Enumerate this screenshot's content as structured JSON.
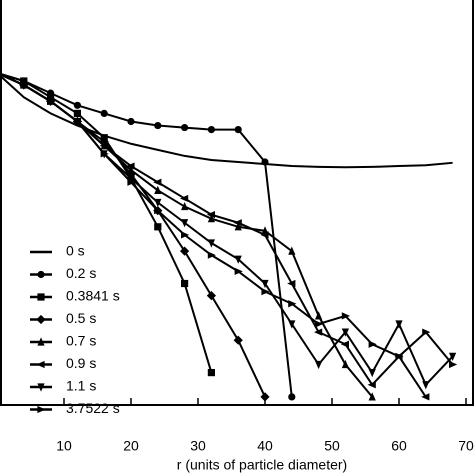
{
  "chart_data": {
    "type": "line",
    "xlabel": "r (units of particle diameter)",
    "x": [
      0,
      4,
      8,
      12,
      16,
      20,
      24,
      28,
      32,
      36,
      40,
      44,
      48,
      52,
      56,
      60,
      64,
      68
    ],
    "xlim": [
      0,
      71
    ],
    "xticks": [
      10,
      20,
      30,
      40,
      50,
      60,
      70
    ],
    "ylim": [
      0,
      1
    ],
    "legend": "lower-left",
    "series": [
      {
        "name": "0 s",
        "color": "#000000",
        "marker": "none",
        "values": [
          0.82,
          0.76,
          0.72,
          0.69,
          0.665,
          0.645,
          0.63,
          0.615,
          0.605,
          0.6,
          0.595,
          0.59,
          0.588,
          0.587,
          0.588,
          0.59,
          0.592,
          0.598
        ]
      },
      {
        "name": "0.2 s",
        "color": "#000000",
        "marker": "circle",
        "values": [
          0.82,
          0.8,
          0.77,
          0.74,
          0.72,
          0.7,
          0.69,
          0.685,
          0.68,
          0.68,
          0.6,
          0.02,
          null,
          null,
          null,
          null,
          null,
          null
        ]
      },
      {
        "name": "0.3841 s",
        "color": "#000000",
        "marker": "square",
        "values": [
          0.82,
          0.8,
          0.76,
          0.72,
          0.66,
          0.56,
          0.44,
          0.3,
          0.08,
          null,
          null,
          null,
          null,
          null,
          null,
          null,
          null,
          null
        ]
      },
      {
        "name": "0.5 s",
        "color": "#000000",
        "marker": "diamond",
        "values": [
          0.82,
          0.79,
          0.75,
          0.7,
          0.65,
          0.57,
          0.48,
          0.38,
          0.27,
          0.16,
          0.02,
          null,
          null,
          null,
          null,
          null,
          null,
          null
        ]
      },
      {
        "name": "0.7 s",
        "color": "#000000",
        "marker": "triangle-up",
        "values": [
          0.82,
          0.79,
          0.75,
          0.7,
          0.64,
          0.58,
          0.53,
          0.49,
          0.46,
          0.44,
          0.43,
          0.38,
          0.22,
          0.1,
          0.02,
          null,
          null,
          null
        ]
      },
      {
        "name": "0.9 s",
        "color": "#000000",
        "marker": "triangle-left",
        "values": [
          0.82,
          0.79,
          0.75,
          0.7,
          0.64,
          0.59,
          0.55,
          0.51,
          0.47,
          0.45,
          0.42,
          0.3,
          0.18,
          0.15,
          0.05,
          0.12,
          0.02,
          null
        ]
      },
      {
        "name": "1.1 s",
        "color": "#000000",
        "marker": "triangle-down",
        "values": [
          0.82,
          0.79,
          0.75,
          0.7,
          0.62,
          0.56,
          0.5,
          0.45,
          0.4,
          0.36,
          0.3,
          0.2,
          0.1,
          0.18,
          0.08,
          0.2,
          0.05,
          0.12
        ]
      },
      {
        "name": "3.7522 s",
        "color": "#000000",
        "marker": "triangle-right",
        "values": [
          0.82,
          0.79,
          0.75,
          0.7,
          0.62,
          0.55,
          0.48,
          0.42,
          0.37,
          0.33,
          0.28,
          0.25,
          0.2,
          0.22,
          0.15,
          0.12,
          0.18,
          0.1
        ]
      }
    ]
  }
}
